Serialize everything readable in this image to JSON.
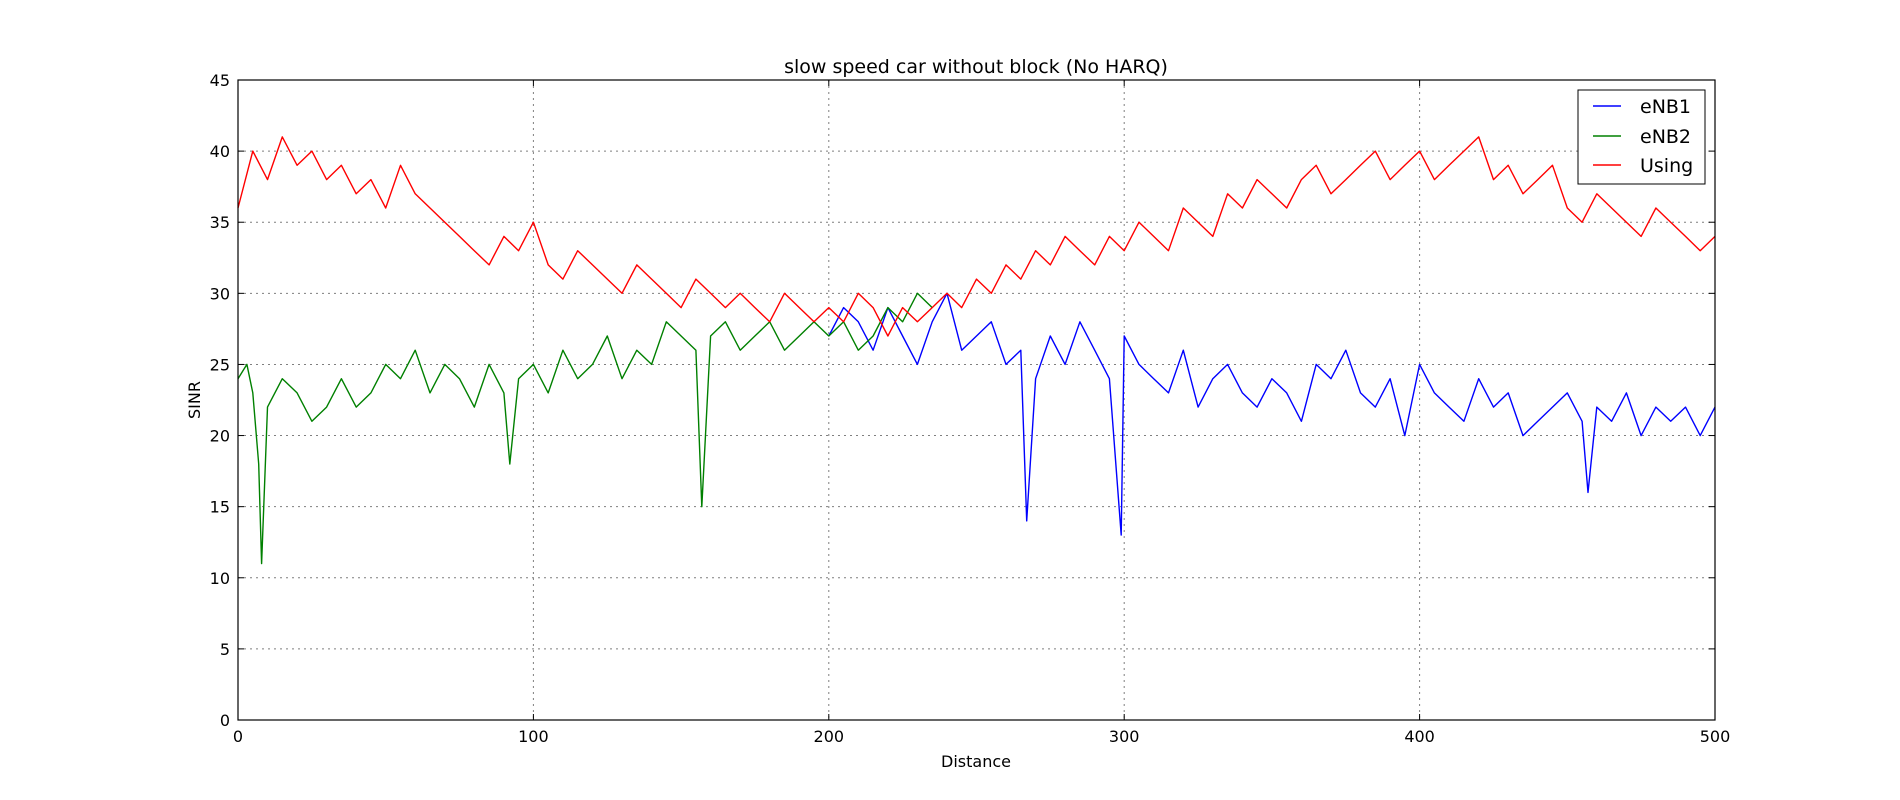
{
  "chart_data": {
    "type": "line",
    "title": "slow speed car without block (No HARQ)",
    "xlabel": "Distance",
    "ylabel": "SINR",
    "xlim": [
      0,
      500
    ],
    "ylim": [
      0,
      45
    ],
    "xticks": [
      "0",
      "100",
      "200",
      "300",
      "400",
      "500"
    ],
    "yticks": [
      "0",
      "5",
      "10",
      "15",
      "20",
      "25",
      "30",
      "35",
      "40",
      "45"
    ],
    "grid": true,
    "legend_position": "top-right",
    "series": [
      {
        "name": "eNB1",
        "color": "#0000ff",
        "x": [
          200,
          205,
          210,
          215,
          220,
          225,
          230,
          235,
          240,
          245,
          250,
          255,
          260,
          265,
          267,
          270,
          275,
          280,
          285,
          290,
          295,
          299,
          300,
          305,
          310,
          315,
          320,
          325,
          330,
          335,
          340,
          345,
          350,
          355,
          360,
          365,
          370,
          375,
          380,
          385,
          390,
          395,
          400,
          405,
          410,
          415,
          420,
          425,
          430,
          435,
          440,
          445,
          450,
          455,
          457,
          460,
          465,
          470,
          475,
          480,
          485,
          490,
          495,
          500
        ],
        "y": [
          27,
          29,
          28,
          26,
          29,
          27,
          25,
          28,
          30,
          26,
          27,
          28,
          25,
          26,
          14,
          24,
          27,
          25,
          28,
          26,
          24,
          13,
          27,
          25,
          24,
          23,
          26,
          22,
          24,
          25,
          23,
          22,
          24,
          23,
          21,
          25,
          24,
          26,
          23,
          22,
          24,
          20,
          25,
          23,
          22,
          21,
          24,
          22,
          23,
          20,
          21,
          22,
          23,
          21,
          16,
          22,
          21,
          23,
          20,
          22,
          21,
          22,
          20,
          22
        ]
      },
      {
        "name": "eNB2",
        "color": "#008000",
        "x": [
          0,
          3,
          5,
          7,
          8,
          10,
          15,
          20,
          25,
          30,
          35,
          40,
          45,
          50,
          55,
          60,
          65,
          70,
          75,
          80,
          85,
          90,
          92,
          95,
          100,
          105,
          110,
          115,
          120,
          125,
          130,
          135,
          140,
          145,
          150,
          155,
          157,
          160,
          165,
          170,
          175,
          180,
          185,
          190,
          195,
          200,
          205,
          210,
          215,
          220,
          225,
          230,
          235
        ],
        "y": [
          24,
          25,
          23,
          18,
          11,
          22,
          24,
          23,
          21,
          22,
          24,
          22,
          23,
          25,
          24,
          26,
          23,
          25,
          24,
          22,
          25,
          23,
          18,
          24,
          25,
          23,
          26,
          24,
          25,
          27,
          24,
          26,
          25,
          28,
          27,
          26,
          15,
          27,
          28,
          26,
          27,
          28,
          26,
          27,
          28,
          27,
          28,
          26,
          27,
          29,
          28,
          30,
          29
        ]
      },
      {
        "name": "Using",
        "color": "#ff0000",
        "x": [
          0,
          5,
          10,
          15,
          20,
          25,
          30,
          35,
          40,
          45,
          50,
          55,
          60,
          65,
          70,
          75,
          80,
          85,
          90,
          95,
          100,
          105,
          110,
          115,
          120,
          125,
          130,
          135,
          140,
          145,
          150,
          155,
          160,
          165,
          170,
          175,
          180,
          185,
          190,
          195,
          200,
          205,
          210,
          215,
          220,
          225,
          230,
          235,
          240,
          245,
          250,
          255,
          260,
          265,
          270,
          275,
          280,
          285,
          290,
          295,
          300,
          305,
          310,
          315,
          320,
          325,
          330,
          335,
          340,
          345,
          350,
          355,
          360,
          365,
          370,
          375,
          380,
          385,
          390,
          395,
          400,
          405,
          410,
          415,
          420,
          425,
          430,
          435,
          440,
          445,
          450,
          455,
          460,
          465,
          470,
          475,
          480,
          485,
          490,
          495,
          500
        ],
        "y": [
          36,
          40,
          38,
          41,
          39,
          40,
          38,
          39,
          37,
          38,
          36,
          39,
          37,
          36,
          35,
          34,
          33,
          32,
          34,
          33,
          35,
          32,
          31,
          33,
          32,
          31,
          30,
          32,
          31,
          30,
          29,
          31,
          30,
          29,
          30,
          29,
          28,
          30,
          29,
          28,
          29,
          28,
          30,
          29,
          27,
          29,
          28,
          29,
          30,
          29,
          31,
          30,
          32,
          31,
          33,
          32,
          34,
          33,
          32,
          34,
          33,
          35,
          34,
          33,
          36,
          35,
          34,
          37,
          36,
          38,
          37,
          36,
          38,
          39,
          37,
          38,
          39,
          40,
          38,
          39,
          40,
          38,
          39,
          40,
          41,
          38,
          39,
          37,
          38,
          39,
          36,
          35,
          37,
          36,
          35,
          34,
          36,
          35,
          34,
          33,
          34
        ]
      }
    ]
  }
}
